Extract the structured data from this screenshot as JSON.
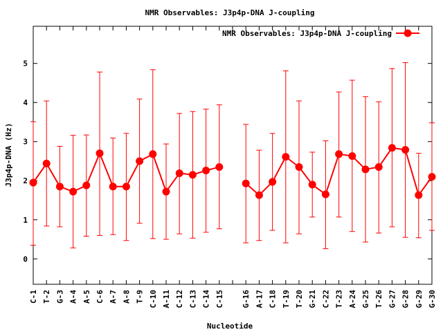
{
  "chart_data": {
    "type": "line",
    "title": "NMR Observables: J3p4p-DNA J-coupling",
    "xlabel": "Nucleotide",
    "ylabel": "J3p4p-DNA (Hz)",
    "ylim": [
      -0.65,
      5.95
    ],
    "yticks": [
      0,
      1,
      2,
      3,
      4,
      5
    ],
    "grid": false,
    "legend_position": "top-right",
    "series": [
      {
        "name": "NMR Observables: J3p4p-DNA J-coupling",
        "color": "#ff0000",
        "marker": "circle",
        "categories": [
          "C-1",
          "T-2",
          "G-3",
          "A-4",
          "A-5",
          "C-6",
          "A-7",
          "A-8",
          "T-9",
          "C-10",
          "A-11",
          "C-12",
          "C-13",
          "C-14",
          "C-15",
          "G-16",
          "A-17",
          "C-18",
          "T-19",
          "T-20",
          "G-21",
          "C-22",
          "T-23",
          "A-24",
          "G-25",
          "T-26",
          "G-27",
          "G-28",
          "G-29",
          "G-30"
        ],
        "values": [
          1.95,
          2.44,
          1.85,
          1.72,
          1.88,
          2.7,
          1.85,
          1.85,
          2.5,
          2.68,
          1.72,
          2.19,
          2.15,
          2.26,
          2.35,
          1.93,
          1.63,
          1.97,
          2.61,
          2.35,
          1.9,
          1.65,
          2.68,
          2.63,
          2.29,
          2.35,
          2.84,
          2.79,
          1.63,
          2.1
        ],
        "error_low": [
          0.35,
          0.84,
          0.82,
          0.28,
          0.58,
          0.6,
          0.62,
          0.47,
          0.91,
          0.52,
          0.5,
          0.64,
          0.53,
          0.68,
          0.77,
          0.41,
          0.47,
          0.73,
          0.41,
          0.64,
          1.07,
          0.26,
          1.07,
          0.7,
          0.43,
          0.66,
          0.82,
          0.55,
          0.54,
          0.73
        ],
        "error_high": [
          3.51,
          4.04,
          2.88,
          3.16,
          3.17,
          4.78,
          3.09,
          3.21,
          4.09,
          4.84,
          2.94,
          3.72,
          3.77,
          3.83,
          3.94,
          3.44,
          2.78,
          3.21,
          4.81,
          4.04,
          2.73,
          3.02,
          4.27,
          4.57,
          4.15,
          4.02,
          4.87,
          5.02,
          2.7,
          3.48
        ],
        "gap_after": "C-15"
      }
    ]
  }
}
